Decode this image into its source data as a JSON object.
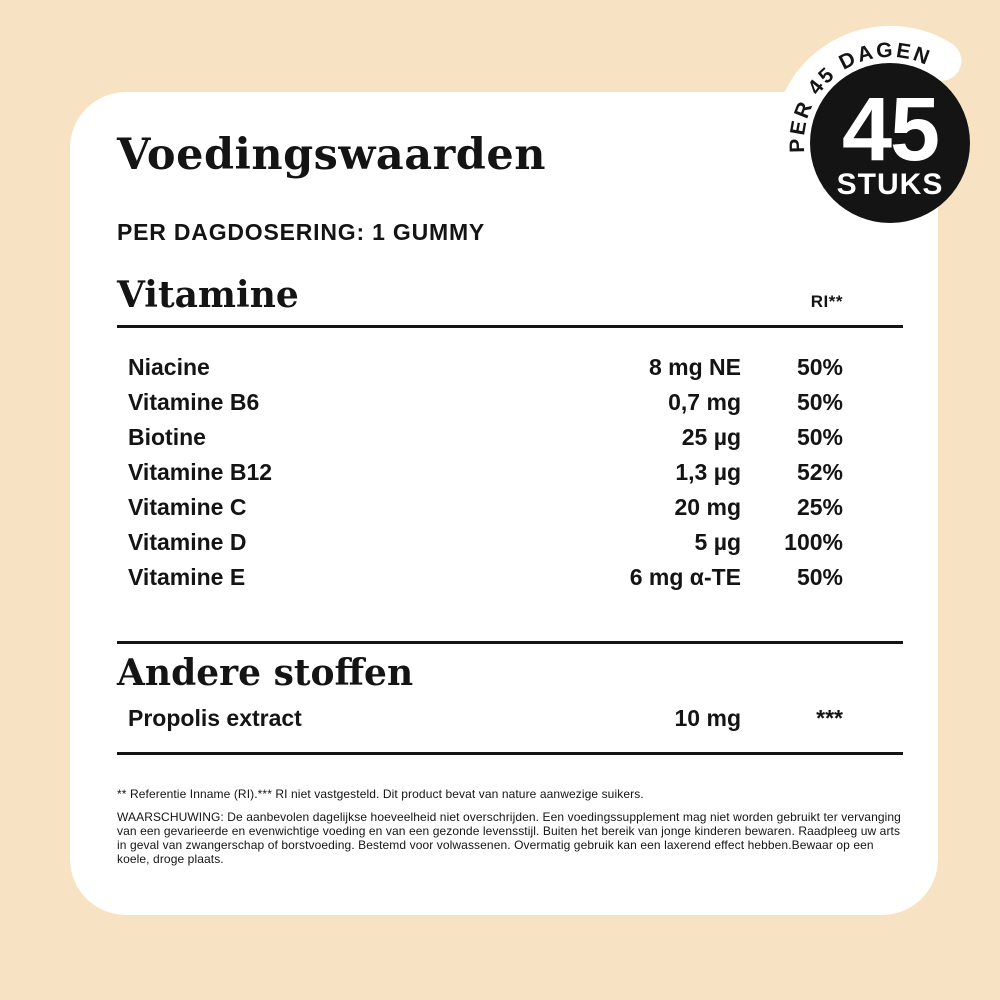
{
  "page": {
    "background_color": "#f7e3c3",
    "card_color": "#ffffff",
    "text_color": "#141414"
  },
  "header": {
    "title": "Voedingswaarden",
    "dosage_line": "PER DAGDOSERING: 1 GUMMY"
  },
  "badge": {
    "count": "45",
    "unit": "STUKS",
    "curved_label": "PER 45 DAGEN",
    "bg_color": "#141414",
    "text_color": "#ffffff",
    "band_color": "#ffffff"
  },
  "vitamins": {
    "section_title": "Vitamine",
    "ri_column_label": "RI**",
    "rows": [
      {
        "name": "Niacine",
        "amount": "8 mg NE",
        "ri": "50%"
      },
      {
        "name": "Vitamine B6",
        "amount": "0,7 mg",
        "ri": "50%"
      },
      {
        "name": "Biotine",
        "amount": "25 µg",
        "ri": "50%"
      },
      {
        "name": "Vitamine B12",
        "amount": "1,3 µg",
        "ri": "52%"
      },
      {
        "name": "Vitamine C",
        "amount": "20 mg",
        "ri": "25%"
      },
      {
        "name": "Vitamine D",
        "amount": "5 µg",
        "ri": "100%"
      },
      {
        "name": "Vitamine E",
        "amount": "6 mg α-TE",
        "ri": "50%"
      }
    ]
  },
  "other_substances": {
    "section_title": "Andere stoffen",
    "rows": [
      {
        "name": "Propolis extract",
        "amount": "10 mg",
        "ri": "***"
      }
    ]
  },
  "footnotes": {
    "reference": "** Referentie Inname (RI).*** RI niet vastgesteld. Dit product bevat van nature aanwezige suikers.",
    "warning": "WAARSCHUWING: De aanbevolen dagelijkse hoeveelheid niet overschrijden. Een voedingssupplement mag niet worden gebruikt ter vervanging van een gevarieerde en evenwichtige voeding en van een gezonde levensstijl. Buiten het bereik van jonge kinderen bewaren. Raadpleeg uw arts in geval van zwangerschap of borstvoeding. Bestemd voor volwassenen. Overmatig gebruik kan een laxerend effect hebben.Bewaar op een koele, droge plaats."
  }
}
